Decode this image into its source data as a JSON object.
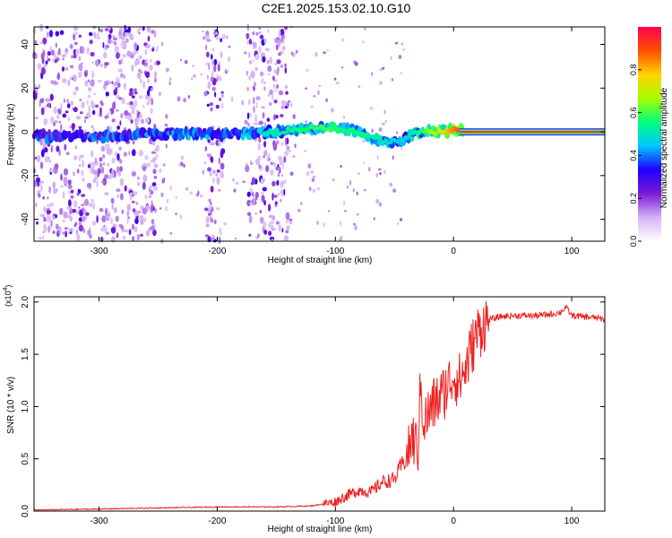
{
  "page": {
    "title": "C2E1.2025.153.02.10.G10"
  },
  "chart_data": [
    {
      "type": "heatmap",
      "title": "C2E1.2025.153.02.10.G10",
      "xlabel": "Height of straight line (km)",
      "ylabel": "Frequency (Hz)",
      "xlim": [
        -355,
        128
      ],
      "ylim": [
        -50,
        48
      ],
      "xticks": [
        -300,
        -200,
        -100,
        0,
        100
      ],
      "xtick_labels": [
        "-300",
        "-200",
        "-100",
        "0",
        "100"
      ],
      "yticks": [
        -40,
        -20,
        0,
        20,
        40
      ],
      "ytick_labels": [
        "-40",
        "-20",
        "0",
        "20",
        "40"
      ],
      "colorbar": {
        "label": "Normalized spectral amplitude",
        "range": [
          0,
          1
        ],
        "ticks": [
          0.0,
          0.2,
          0.4,
          0.6,
          0.8
        ],
        "tick_labels": [
          "0.0",
          "0.2",
          "0.4",
          "0.6",
          "0.8"
        ],
        "colors": [
          "#ffffff",
          "#d4b3f5",
          "#7a1ad6",
          "#2000ff",
          "#00c8ff",
          "#00ff7a",
          "#a8ff00",
          "#ffd200",
          "#ff5000",
          "#ff0050"
        ]
      },
      "ridge": {
        "x": [
          -355,
          -300,
          -250,
          -200,
          -150,
          -130,
          -110,
          -90,
          -75,
          -60,
          -45,
          -35,
          -25,
          -10,
          0,
          10,
          128
        ],
        "y": [
          -2,
          -2,
          -1,
          -1,
          0,
          1,
          2,
          1,
          -1,
          -4,
          -5,
          -1,
          0,
          0,
          1,
          0,
          0
        ],
        "amplitude": [
          0.35,
          0.4,
          0.45,
          0.45,
          0.5,
          0.55,
          0.6,
          0.55,
          0.55,
          0.5,
          0.45,
          0.5,
          0.6,
          0.75,
          0.85,
          0.95,
          1.0
        ]
      },
      "noise_bands_x": [
        [
          -355,
          -250
        ],
        [
          -210,
          -195
        ],
        [
          -175,
          -140
        ]
      ]
    },
    {
      "type": "line",
      "xlabel": "Height of straight line (km)",
      "ylabel": "SNR (10 * v/v)",
      "y_multiplier_label": "(x10^4)",
      "xlim": [
        -355,
        128
      ],
      "ylim": [
        0,
        2.05
      ],
      "xticks": [
        -300,
        -200,
        -100,
        0,
        100
      ],
      "xtick_labels": [
        "-300",
        "-200",
        "-100",
        "0",
        "100"
      ],
      "yticks": [
        0.0,
        0.5,
        1.0,
        1.5,
        2.0
      ],
      "ytick_labels": [
        "0.0",
        "0.5",
        "1.0",
        "1.5",
        "2.0"
      ],
      "series": [
        {
          "color": "#ee2020",
          "x": [
            -355,
            -300,
            -250,
            -200,
            -150,
            -120,
            -100,
            -90,
            -80,
            -70,
            -60,
            -50,
            -45,
            -40,
            -35,
            -30,
            -28,
            -25,
            -20,
            -15,
            -10,
            -5,
            0,
            5,
            10,
            15,
            20,
            25,
            30,
            40,
            50,
            60,
            70,
            80,
            90,
            95,
            100,
            110,
            120,
            128
          ],
          "y": [
            0.01,
            0.02,
            0.03,
            0.04,
            0.04,
            0.05,
            0.09,
            0.15,
            0.2,
            0.18,
            0.28,
            0.3,
            0.42,
            0.5,
            0.7,
            0.6,
            1.2,
            0.85,
            0.95,
            1.05,
            1.1,
            1.2,
            1.3,
            1.25,
            1.35,
            1.55,
            1.7,
            1.78,
            1.83,
            1.86,
            1.87,
            1.87,
            1.87,
            1.88,
            1.9,
            1.95,
            1.87,
            1.86,
            1.85,
            1.83
          ]
        }
      ]
    }
  ]
}
